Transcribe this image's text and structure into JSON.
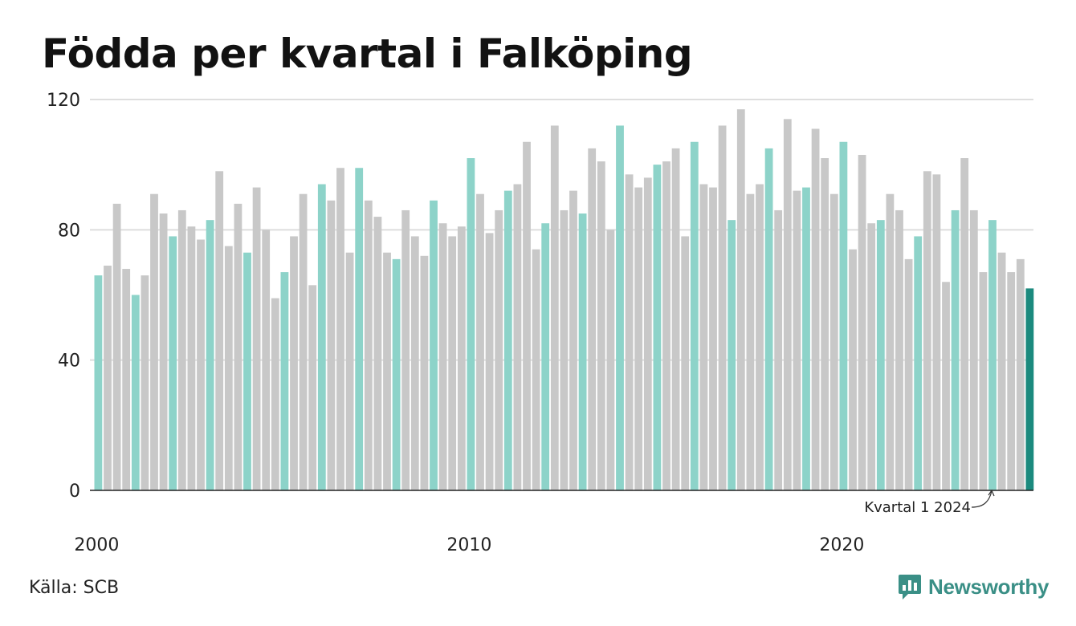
{
  "title": "Födda per kvartal i Falköping",
  "source": "Källa: SCB",
  "brand": {
    "name": "Newsworthy",
    "icon": "newsworthy-logo-icon"
  },
  "colors": {
    "q1": "#8dd3c9",
    "other": "#c8c8c8",
    "highlight": "#1b8a7e",
    "grid": "#dedede",
    "axis": "#222222",
    "brand": "#3a8f86"
  },
  "chart_data": {
    "type": "bar",
    "title": "Födda per kvartal i Falköping",
    "ylim": [
      0,
      120
    ],
    "yticks": [
      0,
      40,
      80,
      120
    ],
    "xtick_labels": [
      "2000",
      "2010",
      "2020"
    ],
    "start_year": 2000,
    "grid": true,
    "annotation": {
      "text": "Kvartal 1 2024"
    },
    "values": [
      66,
      69,
      88,
      68,
      60,
      66,
      91,
      85,
      78,
      86,
      81,
      77,
      83,
      98,
      75,
      88,
      73,
      93,
      80,
      59,
      67,
      78,
      91,
      63,
      94,
      89,
      99,
      73,
      99,
      89,
      84,
      73,
      71,
      86,
      78,
      72,
      89,
      82,
      78,
      81,
      102,
      91,
      79,
      86,
      92,
      94,
      107,
      74,
      82,
      112,
      86,
      92,
      85,
      105,
      101,
      80,
      112,
      97,
      93,
      96,
      100,
      101,
      105,
      78,
      107,
      94,
      93,
      112,
      83,
      117,
      91,
      94,
      105,
      86,
      114,
      92,
      93,
      111,
      102,
      91,
      107,
      74,
      103,
      82,
      83,
      91,
      86,
      71,
      78,
      98,
      97,
      64,
      86,
      102,
      86,
      67,
      83,
      73,
      67,
      71,
      62
    ]
  }
}
